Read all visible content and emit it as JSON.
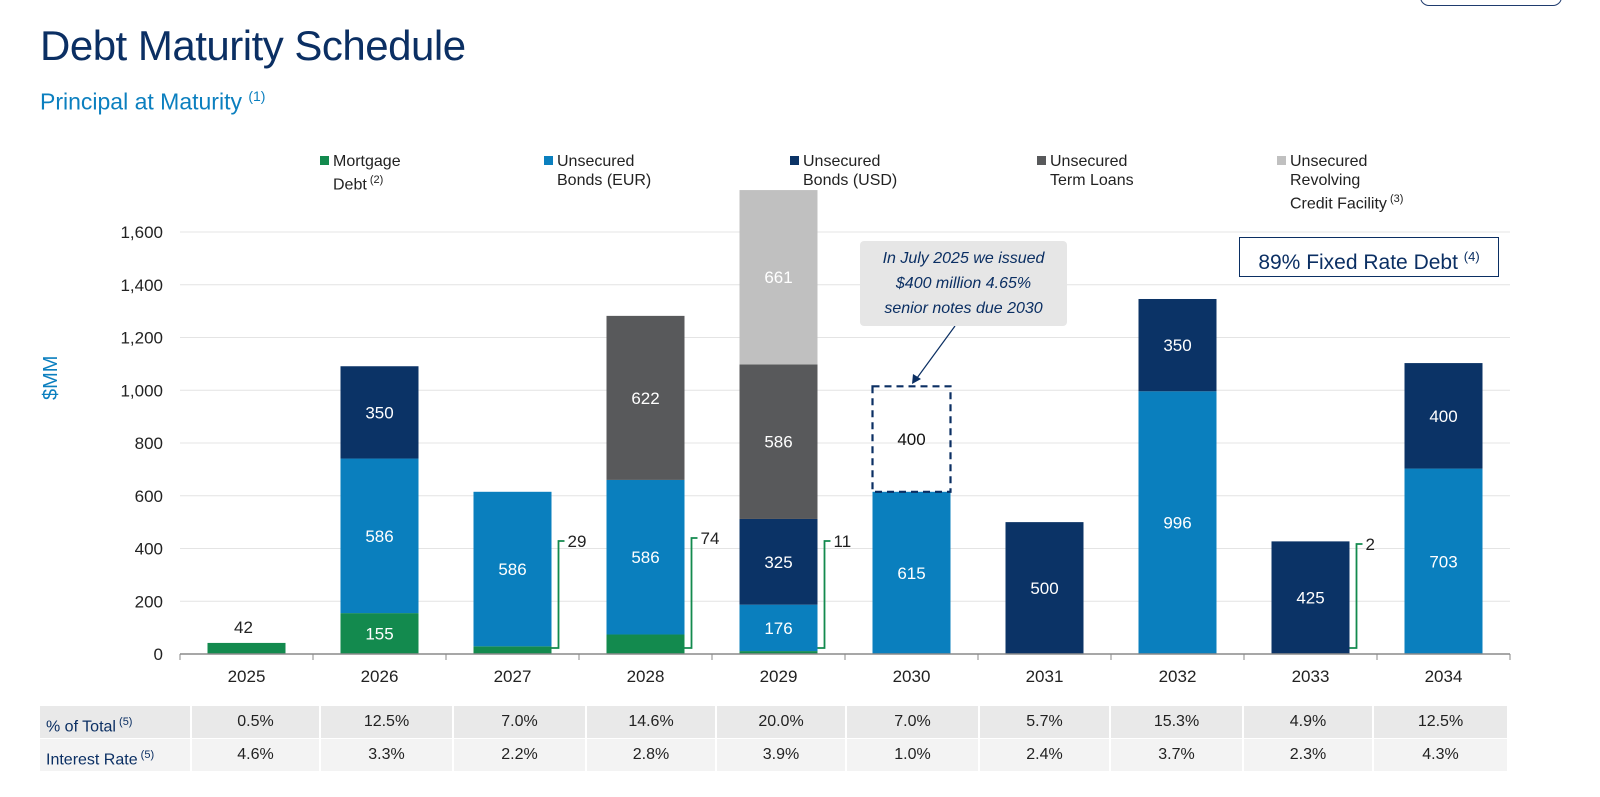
{
  "header": {
    "title": "Debt Maturity Schedule",
    "subtitle": "Principal at Maturity",
    "subtitle_note": "(1)"
  },
  "legend": [
    {
      "lines": [
        "Mortgage",
        "Debt"
      ],
      "note": "(2)",
      "color": "#138a4e"
    },
    {
      "lines": [
        "Unsecured",
        "Bonds (EUR)"
      ],
      "note": "",
      "color": "#0a7fbe"
    },
    {
      "lines": [
        "Unsecured",
        "Bonds (USD)"
      ],
      "note": "",
      "color": "#0b3366"
    },
    {
      "lines": [
        "Unsecured",
        "Term Loans"
      ],
      "note": "",
      "color": "#58595b"
    },
    {
      "lines": [
        "Unsecured",
        "Revolving",
        "Credit Facility"
      ],
      "note": "(3)",
      "color": "#c0c0c0"
    }
  ],
  "callout": {
    "lines": [
      "In July 2025 we issued",
      "$400 million 4.65%",
      "senior notes due 2030"
    ]
  },
  "fixed_rate_box": {
    "text": "89% Fixed Rate Debt",
    "note": "(4)"
  },
  "chart_data": {
    "type": "bar",
    "stacked": true,
    "ylabel": "$MM",
    "ylim": [
      0,
      1700
    ],
    "yticks": [
      0,
      200,
      400,
      600,
      800,
      1000,
      1200,
      1400,
      1600
    ],
    "ytick_labels": [
      "0",
      "200",
      "400",
      "600",
      "800",
      "1,000",
      "1,200",
      "1,400",
      "1,600"
    ],
    "grid": true,
    "legend_position": "top",
    "categories": [
      "2025",
      "2026",
      "2027",
      "2028",
      "2029",
      "2030",
      "2031",
      "2032",
      "2033",
      "2034"
    ],
    "series": [
      {
        "name": "Mortgage Debt",
        "color": "#138a4e",
        "values": [
          42,
          155,
          29,
          74,
          11,
          0,
          0,
          0,
          2,
          0
        ]
      },
      {
        "name": "Unsecured Bonds (EUR)",
        "color": "#0a7fbe",
        "values": [
          0,
          586,
          586,
          586,
          176,
          615,
          0,
          996,
          0,
          703
        ]
      },
      {
        "name": "Unsecured Bonds (USD)",
        "color": "#0b3366",
        "values": [
          0,
          350,
          0,
          0,
          325,
          0,
          500,
          350,
          425,
          400
        ]
      },
      {
        "name": "Unsecured Term Loans",
        "color": "#58595b",
        "values": [
          0,
          0,
          0,
          622,
          586,
          0,
          0,
          0,
          0,
          0
        ]
      },
      {
        "name": "Unsecured Revolving Credit Facility",
        "color": "#c0c0c0",
        "values": [
          0,
          0,
          0,
          0,
          661,
          0,
          0,
          0,
          0,
          0
        ]
      }
    ],
    "pending_issue": {
      "category": "2030",
      "value": 400,
      "style": "dashed outline"
    },
    "side_labels": [
      {
        "category": "2027",
        "value": 29
      },
      {
        "category": "2028",
        "value": 74
      },
      {
        "category": "2029",
        "value": 11
      },
      {
        "category": "2033",
        "value": 2
      }
    ],
    "top_labels": [
      {
        "category": "2025",
        "value": 42
      }
    ]
  },
  "table": {
    "rows": [
      {
        "label": "% of Total",
        "note": "(5)",
        "values": [
          "0.5%",
          "12.5%",
          "7.0%",
          "14.6%",
          "20.0%",
          "7.0%",
          "5.7%",
          "15.3%",
          "4.9%",
          "12.5%"
        ]
      },
      {
        "label": "Interest Rate",
        "note": "(5)",
        "values": [
          "4.6%",
          "3.3%",
          "2.2%",
          "2.8%",
          "3.9%",
          "1.0%",
          "2.4%",
          "3.7%",
          "2.3%",
          "4.3%"
        ]
      }
    ]
  }
}
